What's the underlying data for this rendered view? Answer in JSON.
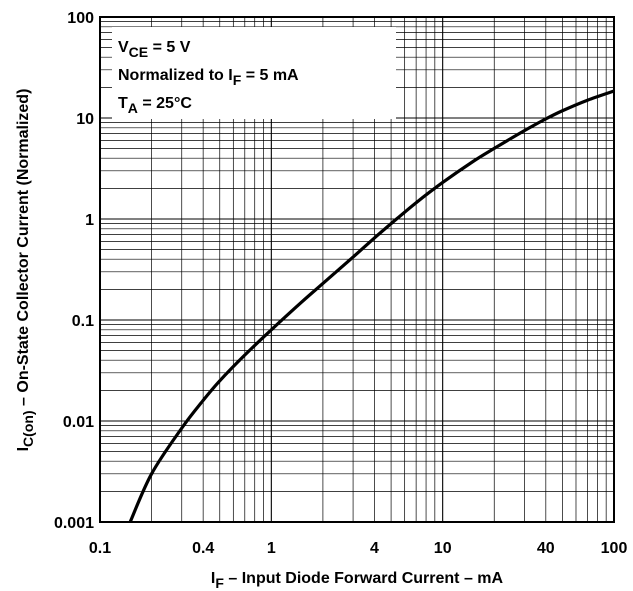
{
  "chart_data": {
    "type": "line",
    "title": "",
    "xlabel": {
      "main": "I",
      "sub": "F",
      "rest": " – Input Diode Forward Current – mA"
    },
    "ylabel": {
      "main": "I",
      "sub": "C(on)",
      "rest": " – On-State Collector Current (Normalized)"
    },
    "xscale": "log",
    "yscale": "log",
    "xlim": [
      0.1,
      100
    ],
    "ylim": [
      0.001,
      100
    ],
    "grid": true,
    "x_ticks": [
      "0.1",
      "0.4",
      "1",
      "4",
      "10",
      "40",
      "100"
    ],
    "x_tick_values": [
      0.1,
      0.4,
      1,
      4,
      10,
      40,
      100
    ],
    "y_ticks": [
      "0.001",
      "0.01",
      "0.1",
      "1",
      "10",
      "100"
    ],
    "y_tick_values": [
      0.001,
      0.01,
      0.1,
      1,
      10,
      100
    ],
    "annotation": [
      {
        "main": "V",
        "sub": "CE",
        "rest": " = 5 V"
      },
      {
        "main": "Normalized to I",
        "sub": "F",
        "rest": " = 5 mA"
      },
      {
        "main": "T",
        "sub": "A",
        "rest": " = 25°C"
      }
    ],
    "series": [
      {
        "x": [
          0.15,
          0.2,
          0.3,
          0.4,
          0.5,
          0.7,
          1,
          1.5,
          2,
          3,
          4,
          5,
          7,
          10,
          15,
          20,
          30,
          40,
          50,
          70,
          100
        ],
        "y": [
          0.001,
          0.003,
          0.0085,
          0.016,
          0.025,
          0.045,
          0.08,
          0.15,
          0.23,
          0.42,
          0.65,
          0.9,
          1.45,
          2.3,
          3.7,
          5.0,
          7.5,
          9.8,
          11.8,
          15.0,
          18.5
        ]
      }
    ]
  }
}
